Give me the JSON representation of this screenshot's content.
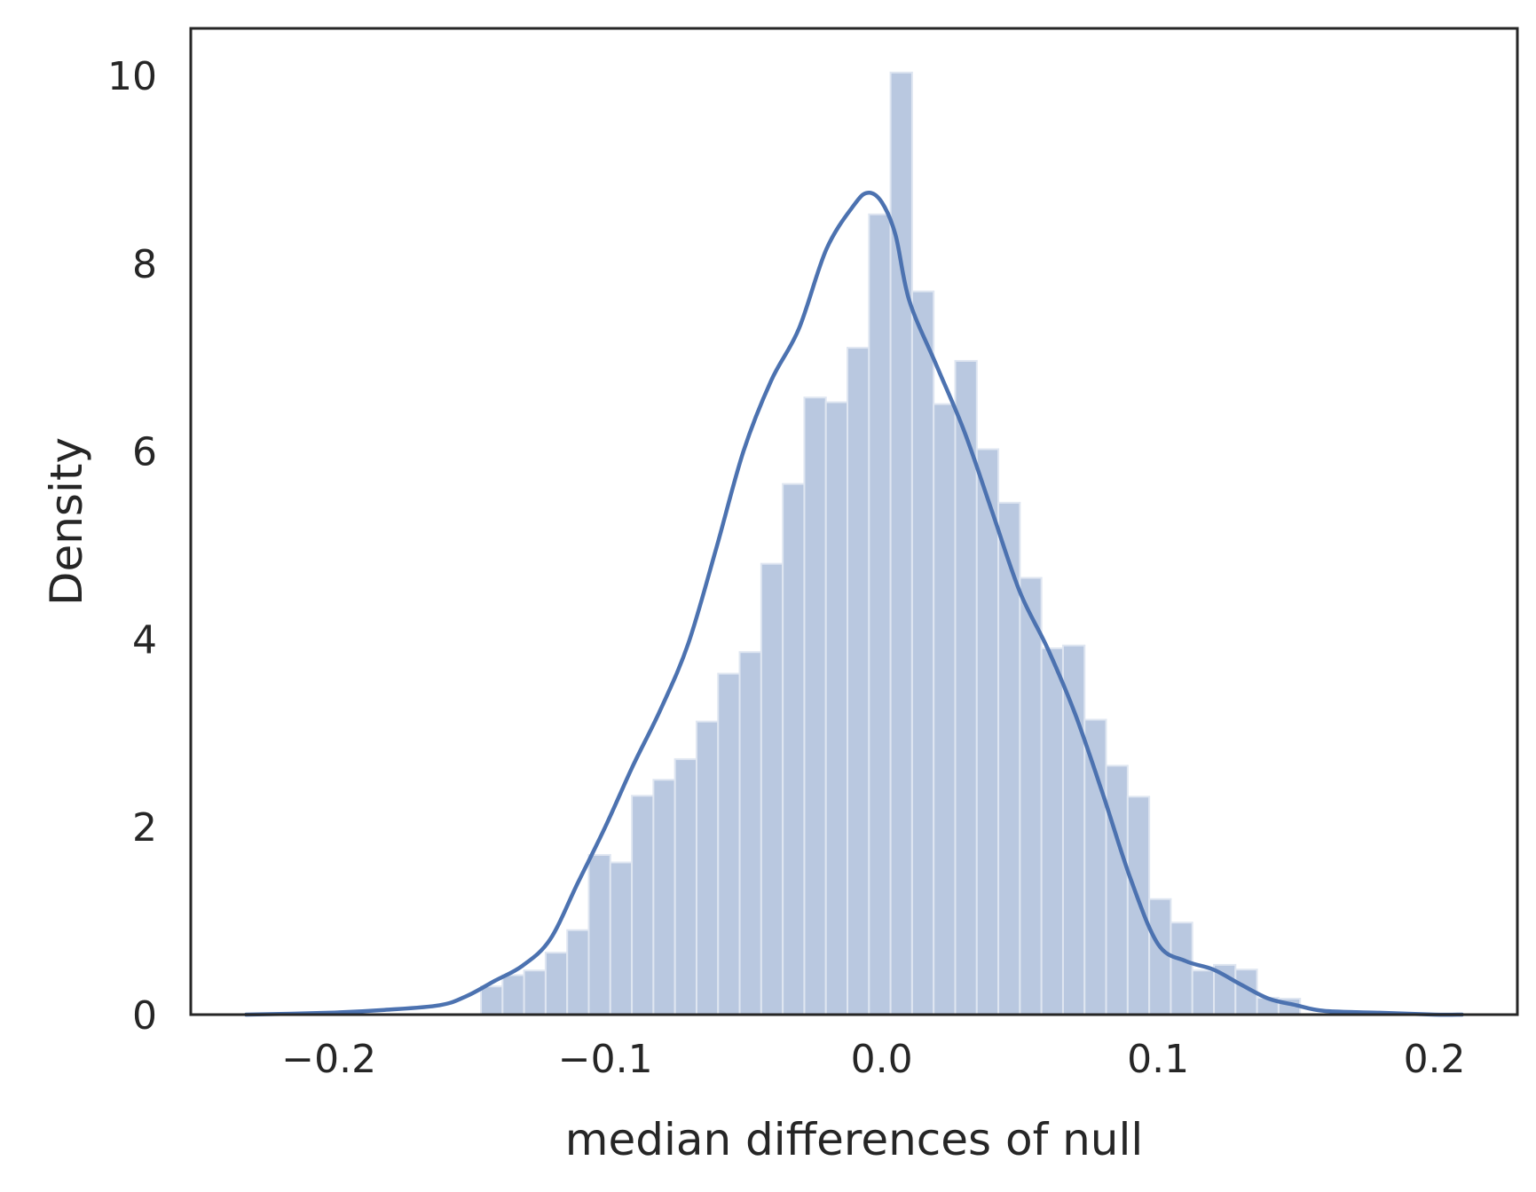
{
  "chart_data": {
    "type": "bar",
    "title": "",
    "xlabel": "median differences of null",
    "ylabel": "Density",
    "xlim": [
      -0.25,
      0.23
    ],
    "ylim": [
      0,
      10.5
    ],
    "xticks": [
      -0.2,
      -0.1,
      0.0,
      0.1,
      0.2
    ],
    "xtick_labels": [
      "−0.2",
      "−0.1",
      "0.0",
      "0.1",
      "0.2"
    ],
    "yticks": [
      0,
      2,
      4,
      6,
      8,
      10
    ],
    "ytick_labels": [
      "0",
      "2",
      "4",
      "6",
      "8",
      "10"
    ],
    "grid": false,
    "legend": "none",
    "histogram": {
      "bin_edges": [
        -0.145,
        -0.1372,
        -0.1294,
        -0.1216,
        -0.1138,
        -0.106,
        -0.0982,
        -0.0904,
        -0.0826,
        -0.0748,
        -0.067,
        -0.0592,
        -0.0514,
        -0.0436,
        -0.0358,
        -0.028,
        -0.0202,
        -0.0124,
        -0.0046,
        0.0032,
        0.011,
        0.0188,
        0.0266,
        0.0344,
        0.0422,
        0.05,
        0.0578,
        0.0656,
        0.0734,
        0.0812,
        0.089,
        0.0968,
        0.1046,
        0.1124,
        0.1202,
        0.128,
        0.1358,
        0.1436,
        0.1514
      ],
      "values": [
        0.3,
        0.42,
        0.47,
        0.66,
        0.9,
        1.7,
        1.62,
        2.33,
        2.5,
        2.72,
        3.12,
        3.63,
        3.86,
        4.8,
        5.65,
        6.57,
        6.52,
        7.1,
        8.52,
        10.03,
        7.7,
        6.5,
        6.96,
        6.02,
        5.45,
        4.65,
        3.9,
        3.93,
        3.14,
        2.65,
        2.32,
        1.23,
        0.98,
        0.47,
        0.53,
        0.48,
        0.18,
        0.17
      ],
      "color": "#b9c8e0",
      "edge_color": "#dfe6f1"
    },
    "kde": {
      "x": [
        -0.23,
        -0.2,
        -0.18,
        -0.16,
        -0.15,
        -0.14,
        -0.13,
        -0.12,
        -0.11,
        -0.1,
        -0.09,
        -0.08,
        -0.07,
        -0.06,
        -0.05,
        -0.04,
        -0.03,
        -0.02,
        -0.01,
        -0.005,
        0.0,
        0.005,
        0.01,
        0.02,
        0.03,
        0.04,
        0.05,
        0.06,
        0.07,
        0.08,
        0.09,
        0.1,
        0.11,
        0.12,
        0.13,
        0.14,
        0.15,
        0.16,
        0.18,
        0.2,
        0.21
      ],
      "y": [
        0.0,
        0.02,
        0.05,
        0.1,
        0.2,
        0.36,
        0.52,
        0.8,
        1.4,
        2.0,
        2.65,
        3.25,
        3.95,
        4.95,
        6.0,
        6.75,
        7.3,
        8.15,
        8.62,
        8.75,
        8.65,
        8.3,
        7.6,
        6.9,
        6.2,
        5.35,
        4.5,
        3.9,
        3.2,
        2.35,
        1.45,
        0.75,
        0.57,
        0.48,
        0.32,
        0.17,
        0.1,
        0.04,
        0.02,
        0.0,
        0.0
      ],
      "color": "#4c72b0"
    },
    "axes_color": "#262626",
    "background": "#ffffff"
  }
}
